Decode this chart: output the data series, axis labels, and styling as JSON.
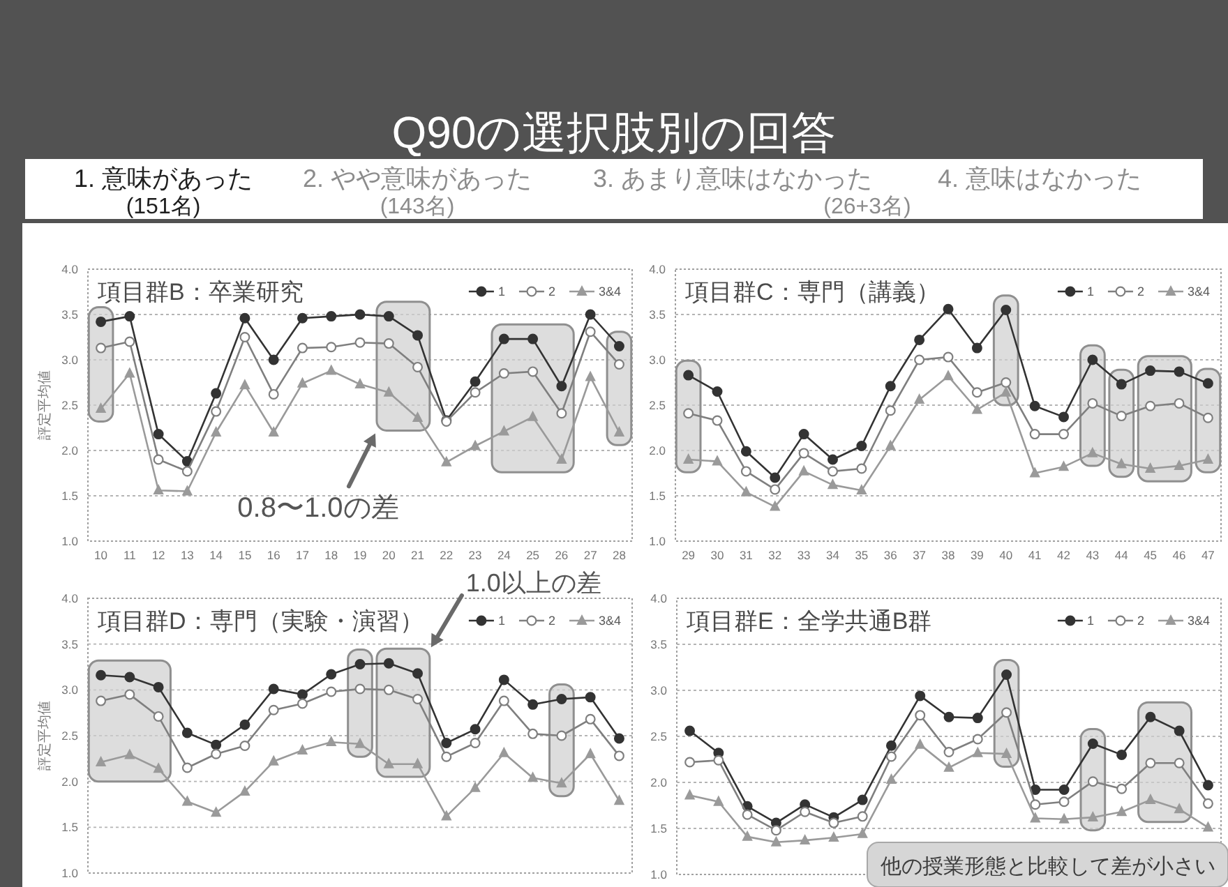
{
  "chart_data": [
    {
      "type": "other",
      "title": "Q90の選択肢別の回答",
      "annotations": [
        "1. 意味があった",
        "(151名)",
        "2. やや意味があった",
        "(143名)",
        "3. あまり意味はなかった",
        "4. 意味はなかった",
        "(26+3名)"
      ]
    },
    {
      "type": "line",
      "title": "項目群B：卒業研究",
      "ylabel": "評定平均値",
      "categories": [
        "10",
        "11",
        "12",
        "13",
        "14",
        "15",
        "16",
        "17",
        "18",
        "19",
        "20",
        "21",
        "22",
        "23",
        "24",
        "25",
        "26",
        "27",
        "28"
      ],
      "series": [
        {
          "name": "1",
          "color": "#333333",
          "marker": "circle",
          "values": [
            3.42,
            3.48,
            2.18,
            1.88,
            2.63,
            3.46,
            3.0,
            3.46,
            3.48,
            3.5,
            3.48,
            3.27,
            2.33,
            2.76,
            3.23,
            3.23,
            2.71,
            3.5,
            3.15
          ]
        },
        {
          "name": "2",
          "color": "#7f7f7f",
          "marker": "circle",
          "values": [
            3.13,
            3.2,
            1.9,
            1.77,
            2.43,
            3.25,
            2.62,
            3.13,
            3.14,
            3.19,
            3.18,
            2.92,
            2.32,
            2.64,
            2.85,
            2.87,
            2.41,
            3.31,
            2.95
          ]
        },
        {
          "name": "3&4",
          "color": "#9a9a9a",
          "marker": "triangle",
          "values": [
            2.46,
            2.85,
            1.56,
            1.55,
            2.2,
            2.72,
            2.2,
            2.74,
            2.88,
            2.73,
            2.64,
            2.36,
            1.87,
            2.05,
            2.21,
            2.37,
            1.9,
            2.81,
            2.2
          ]
        }
      ],
      "ylim": [
        1,
        4
      ],
      "yticks": [
        {
          "value": 1,
          "label": "1.0"
        },
        1.5,
        {
          "value": 2,
          "label": "2.0"
        },
        2.5,
        {
          "value": 3,
          "label": "3.0"
        },
        3.5,
        {
          "value": 4,
          "label": "4.0"
        }
      ],
      "grid": "y",
      "legend": "top right",
      "bands": [
        {
          "axis": "x",
          "from": "10",
          "to": "10"
        },
        {
          "axis": "x",
          "from": "20",
          "to": "21"
        },
        {
          "axis": "x",
          "from": "24",
          "to": "26"
        },
        {
          "axis": "x",
          "from": "28",
          "to": "28"
        }
      ],
      "annotations": [
        "0.8〜1.0の差"
      ]
    },
    {
      "type": "line",
      "title": "項目群C：専門（講義）",
      "categories": [
        "29",
        "30",
        "31",
        "32",
        "33",
        "34",
        "35",
        "36",
        "37",
        "38",
        "39",
        "40",
        "41",
        "42",
        "43",
        "44",
        "45",
        "46",
        "47"
      ],
      "series": [
        {
          "name": "1",
          "color": "#333333",
          "marker": "circle",
          "values": [
            2.83,
            2.65,
            1.99,
            1.7,
            2.18,
            1.9,
            2.05,
            2.71,
            3.22,
            3.56,
            3.13,
            3.55,
            2.49,
            2.37,
            3.0,
            2.73,
            2.88,
            2.87,
            2.74
          ]
        },
        {
          "name": "2",
          "color": "#7f7f7f",
          "marker": "circle",
          "values": [
            2.41,
            2.33,
            1.77,
            1.57,
            1.97,
            1.77,
            1.8,
            2.44,
            3.0,
            3.03,
            2.64,
            2.75,
            2.18,
            2.18,
            2.52,
            2.38,
            2.49,
            2.52,
            2.36
          ]
        },
        {
          "name": "3&4",
          "color": "#9a9a9a",
          "marker": "triangle",
          "values": [
            1.9,
            1.88,
            1.54,
            1.38,
            1.77,
            1.62,
            1.56,
            2.05,
            2.56,
            2.82,
            2.45,
            2.64,
            1.75,
            1.82,
            1.97,
            1.85,
            1.8,
            1.83,
            1.9
          ]
        }
      ],
      "ylim": [
        1,
        4
      ],
      "yticks": [
        {
          "value": 1,
          "label": "1.0"
        },
        1.5,
        {
          "value": 2,
          "label": "2.0"
        },
        2.5,
        {
          "value": 3,
          "label": "3.0"
        },
        3.5,
        {
          "value": 4,
          "label": "4.0"
        }
      ],
      "grid": "y",
      "legend": "top right",
      "bands": [
        {
          "axis": "x",
          "from": "29",
          "to": "29"
        },
        {
          "axis": "x",
          "from": "40",
          "to": "40"
        },
        {
          "axis": "x",
          "from": "43",
          "to": "43"
        },
        {
          "axis": "x",
          "from": "44",
          "to": "44"
        },
        {
          "axis": "x",
          "from": "45",
          "to": "46"
        },
        {
          "axis": "x",
          "from": "47",
          "to": "47"
        }
      ]
    },
    {
      "type": "line",
      "title": "項目群D：専門（実験・演習）",
      "ylabel": "評定平均値",
      "categories": [
        null,
        null,
        null,
        null,
        null,
        null,
        null,
        null,
        null,
        null,
        null,
        null,
        null,
        null,
        null,
        null,
        null,
        null,
        null
      ],
      "series": [
        {
          "name": "1",
          "color": "#333333",
          "marker": "circle",
          "values": [
            3.16,
            3.14,
            3.03,
            2.53,
            2.4,
            2.62,
            3.01,
            2.95,
            3.17,
            3.28,
            3.29,
            3.18,
            2.42,
            2.57,
            3.11,
            2.84,
            2.9,
            2.92,
            2.47
          ]
        },
        {
          "name": "2",
          "color": "#7f7f7f",
          "marker": "circle",
          "values": [
            2.88,
            2.95,
            2.71,
            2.15,
            2.3,
            2.39,
            2.78,
            2.85,
            2.98,
            3.01,
            3.0,
            2.9,
            2.27,
            2.42,
            2.88,
            2.52,
            2.5,
            2.68,
            2.28
          ]
        },
        {
          "name": "3&4",
          "color": "#9a9a9a",
          "marker": "triangle",
          "values": [
            2.21,
            2.29,
            2.14,
            1.78,
            1.66,
            1.89,
            2.22,
            2.34,
            2.43,
            2.41,
            2.19,
            2.19,
            1.62,
            1.93,
            2.31,
            2.04,
            1.98,
            2.3,
            1.79
          ]
        }
      ],
      "ylim": [
        1,
        4
      ],
      "yticks": [
        {
          "value": 1,
          "label": "1.0"
        },
        1.5,
        {
          "value": 2,
          "label": "2.0"
        },
        2.5,
        {
          "value": 3,
          "label": "3.0"
        },
        3.5,
        {
          "value": 4,
          "label": "4.0"
        }
      ],
      "grid": "y",
      "legend": "top right",
      "tick_labels": "y",
      "annotations": [
        "1.0以上の差"
      ]
    },
    {
      "type": "line",
      "title": "項目群E：全学共通B群",
      "categories": [
        null,
        null,
        null,
        null,
        null,
        null,
        null,
        null,
        null,
        null,
        null,
        null,
        null,
        null,
        null,
        null,
        null,
        null,
        null
      ],
      "series": [
        {
          "name": "1",
          "color": "#333333",
          "marker": "circle",
          "values": [
            2.56,
            2.32,
            1.74,
            1.56,
            1.76,
            1.62,
            1.81,
            2.4,
            2.94,
            2.71,
            2.7,
            3.17,
            1.92,
            1.92,
            2.42,
            2.3,
            2.71,
            2.56,
            1.97
          ]
        },
        {
          "name": "2",
          "color": "#7f7f7f",
          "marker": "circle",
          "values": [
            2.22,
            2.24,
            1.65,
            1.48,
            1.68,
            1.56,
            1.63,
            2.28,
            2.73,
            2.33,
            2.47,
            2.76,
            1.76,
            1.79,
            2.01,
            1.93,
            2.21,
            2.21,
            1.77
          ]
        },
        {
          "name": "3&4",
          "color": "#9a9a9a",
          "marker": "triangle",
          "values": [
            1.86,
            1.79,
            1.41,
            1.35,
            1.37,
            1.4,
            1.44,
            2.03,
            2.41,
            2.16,
            2.32,
            2.31,
            1.61,
            1.6,
            1.62,
            1.68,
            1.81,
            1.71,
            1.51
          ]
        }
      ],
      "ylim": [
        1,
        4
      ],
      "yticks": [
        {
          "value": 1,
          "label": "1.0"
        },
        1.5,
        {
          "value": 2,
          "label": "2.0"
        },
        2.5,
        {
          "value": 3,
          "label": "3.0"
        },
        3.5,
        {
          "value": 4,
          "label": "4.0"
        }
      ],
      "grid": "y",
      "legend": "top right",
      "tick_labels": "y",
      "annotations": [
        "他の授業形態と比較して差が小さい"
      ]
    }
  ]
}
